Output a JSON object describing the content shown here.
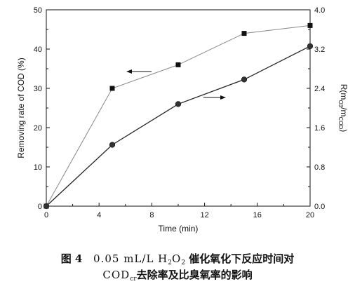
{
  "chart_data": {
    "type": "line",
    "xlabel": "Time (min)",
    "ylabel_left": "Removing rate of COD (%)",
    "ylabel_right_parts": [
      "R(m",
      "O3",
      "/m",
      "COD",
      ")"
    ],
    "xlim": [
      0,
      20
    ],
    "ylim_left": [
      0,
      50
    ],
    "ylim_right": [
      0.0,
      4.0
    ],
    "x_ticks": [
      0,
      4,
      8,
      12,
      16,
      20
    ],
    "y_left_ticks": [
      0,
      10,
      20,
      30,
      40,
      50
    ],
    "y_right_ticks": [
      "0.0",
      "0.8",
      "1.6",
      "2.4",
      "3.2",
      "4.0"
    ],
    "grid": false,
    "legend": "none",
    "series": [
      {
        "marker": "square",
        "axis": "left",
        "color": "#888888",
        "x": [
          0,
          5,
          10,
          15,
          20
        ],
        "y": [
          0,
          30.0,
          36.0,
          44.0,
          46.0
        ],
        "arrow": "left"
      },
      {
        "marker": "circle",
        "axis": "right",
        "color": "#222222",
        "x": [
          0,
          5,
          10,
          15,
          20
        ],
        "y": [
          0,
          1.25,
          2.08,
          2.58,
          3.26
        ],
        "arrow": "right"
      }
    ]
  },
  "caption": {
    "fig_label": "图 4",
    "concentration": "0.05 mL/L H",
    "h2o2_sub1": "2",
    "h2o2_o": "O",
    "h2o2_sub2": "2",
    "line1_rest": " 催化氧化下反应时间对",
    "cod": "COD",
    "cod_sub": "cr",
    "line2_rest": "去除率及比臭氧率的影响"
  }
}
